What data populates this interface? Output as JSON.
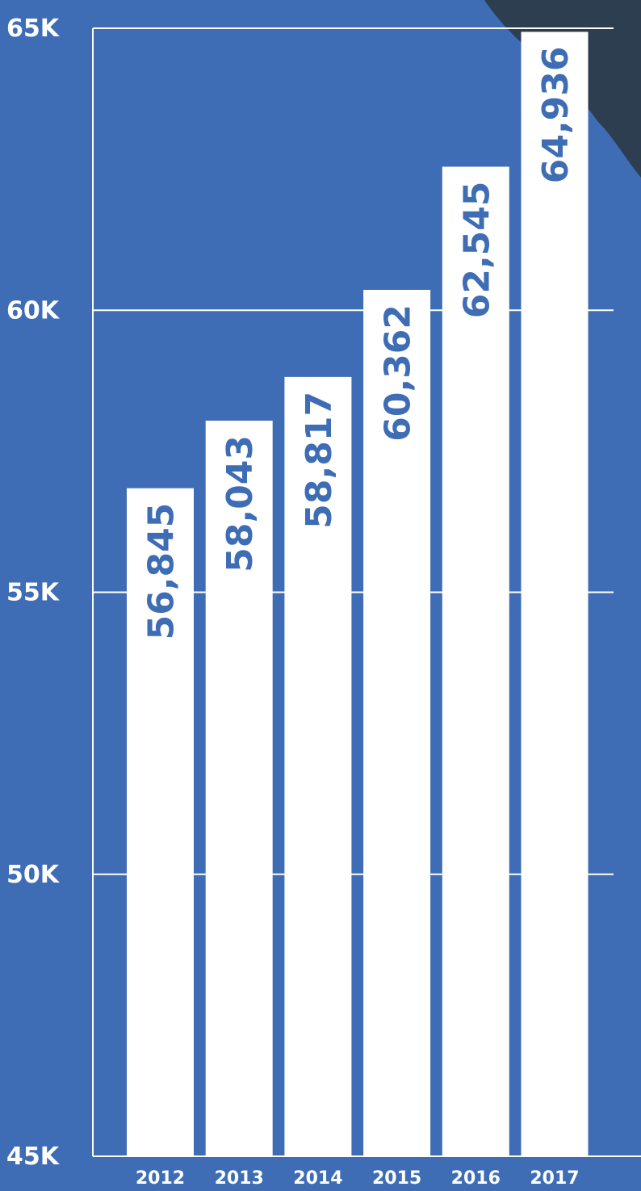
{
  "chart_data": {
    "type": "bar",
    "categories": [
      "2012",
      "2013",
      "2014",
      "2015",
      "2016",
      "2017"
    ],
    "values": [
      56845,
      58043,
      58817,
      60362,
      62545,
      64936
    ],
    "value_labels": [
      "56,845",
      "58,043",
      "58,817",
      "60,362",
      "62,545",
      "64,936"
    ],
    "color": "#ffffff",
    "ylim": [
      45000,
      65000
    ],
    "yticks": [
      {
        "value": 45000,
        "label": "45K"
      },
      {
        "value": 50000,
        "label": "50K"
      },
      {
        "value": 55000,
        "label": "55K"
      },
      {
        "value": 60000,
        "label": "60K"
      },
      {
        "value": 65000,
        "label": "65K"
      }
    ],
    "grid": true
  }
}
